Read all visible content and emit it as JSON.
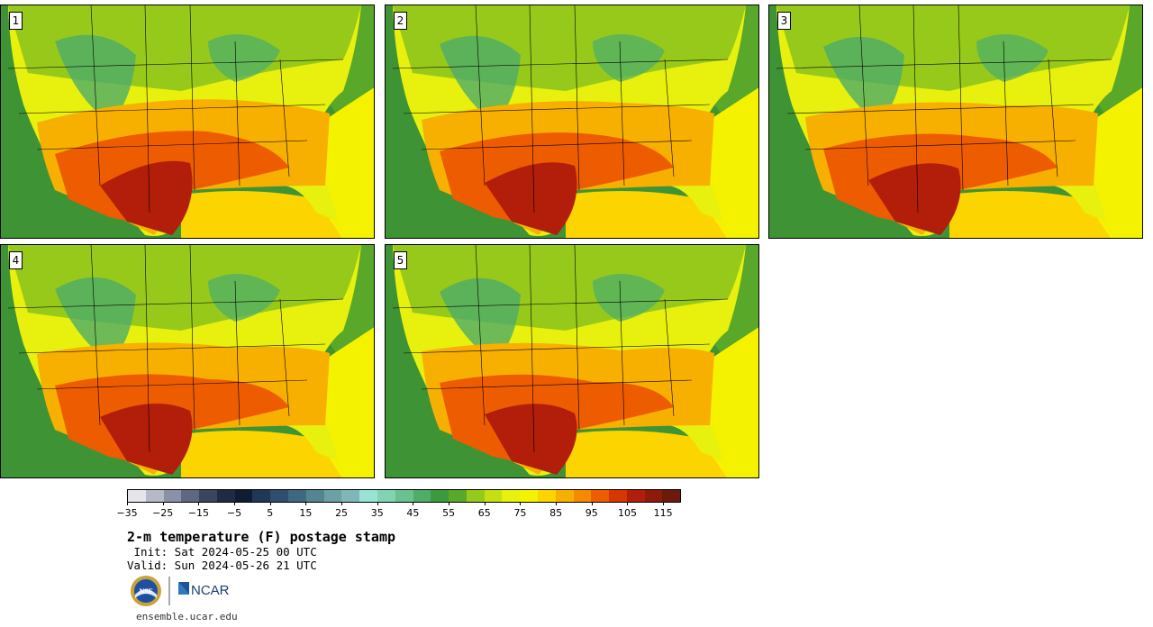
{
  "panels": [
    {
      "label": "1"
    },
    {
      "label": "2"
    },
    {
      "label": "3"
    },
    {
      "label": "4"
    },
    {
      "label": "5"
    }
  ],
  "colorbar": {
    "colors": [
      "#e6e6ea",
      "#b7b9c9",
      "#8a90a8",
      "#5e6883",
      "#3a4660",
      "#1f2b45",
      "#101c33",
      "#223656",
      "#2f4e6e",
      "#3f6780",
      "#53848f",
      "#6aa1a4",
      "#7fb7b7",
      "#98e3d3",
      "#81d4b2",
      "#68c18f",
      "#4dad69",
      "#3a9a3d",
      "#5aa82a",
      "#97c91b",
      "#c5e011",
      "#e8f00d",
      "#f5f200",
      "#fcd400",
      "#f8b000",
      "#f58a00",
      "#ee5c00",
      "#d83600",
      "#b21e0a",
      "#8d1b0c",
      "#6b1a0c"
    ],
    "tick_values": [
      "−35",
      "−25",
      "−15",
      "−5",
      "5",
      "15",
      "25",
      "35",
      "45",
      "55",
      "65",
      "75",
      "85",
      "95",
      "105",
      "115"
    ],
    "range_min": -35,
    "range_max": 120,
    "units": "F"
  },
  "title": "2-m temperature (F) postage stamp",
  "init_text": " Init: Sat 2024-05-25 00 UTC",
  "valid_text": "Valid: Sun 2024-05-26 21 UTC",
  "logos": {
    "nsf": "NSF",
    "ncar": "NCAR"
  },
  "url": "ensemble.ucar.edu",
  "map_colors": {
    "ocean_pacific": "#3e9435",
    "ocean_atlantic_north": "#5aa82a",
    "gulf": "#fcd400",
    "atlantic_south": "#f5f200",
    "mountain": "#4dad69",
    "north": "#97c91b",
    "mid": "#e8f00d",
    "warm": "#f8b000",
    "hot": "#ee5c00",
    "hottest": "#b21e0a"
  }
}
